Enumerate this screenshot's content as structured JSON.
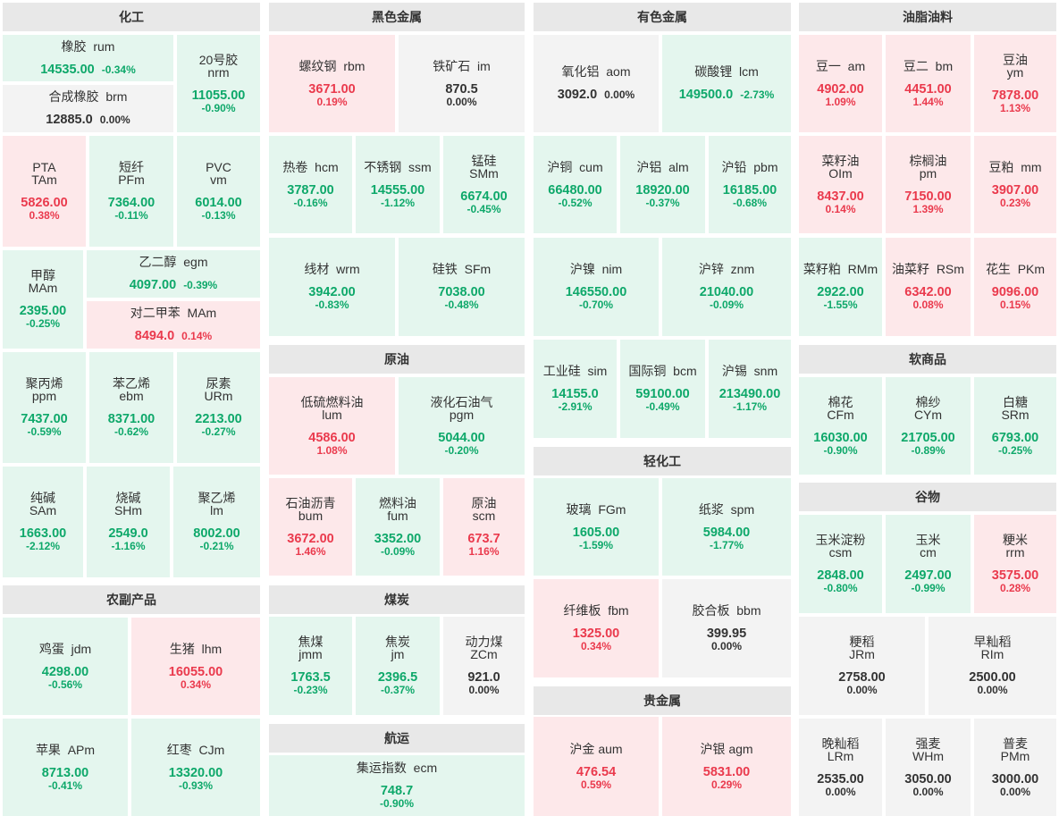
{
  "headers": [
    "化工",
    "黑色金属",
    "有色金属",
    "油脂油料",
    "原油",
    "轻化工",
    "软商品",
    "谷物",
    "农副产品",
    "煤炭",
    "航运",
    "贵金属"
  ],
  "tiles": [
    {
      "name": "橡胶  rum",
      "price": "14535.00",
      "change": "-0.34%"
    },
    {
      "name": "20号胶\nnrm",
      "price": "11055.00",
      "change": "-0.90%"
    },
    {
      "name": "合成橡胶  brm",
      "price": "12885.0",
      "change": "0.00%"
    },
    {
      "name": "PTA\nTAm",
      "price": "5826.00",
      "change": "0.38%"
    },
    {
      "name": "短纤\nPFm",
      "price": "7364.00",
      "change": "-0.11%"
    },
    {
      "name": "PVC\nvm",
      "price": "6014.00",
      "change": "-0.13%"
    },
    {
      "name": "甲醇\nMAm",
      "price": "2395.00",
      "change": "-0.25%"
    },
    {
      "name": "乙二醇  egm",
      "price": "4097.00",
      "change": "-0.39%"
    },
    {
      "name": "对二甲苯  MAm",
      "price": "8494.0",
      "change": "0.14%"
    },
    {
      "name": "聚丙烯\nppm",
      "price": "7437.00",
      "change": "-0.59%"
    },
    {
      "name": "苯乙烯\nebm",
      "price": "8371.00",
      "change": "-0.62%"
    },
    {
      "name": "尿素\nURm",
      "price": "2213.00",
      "change": "-0.27%"
    },
    {
      "name": "纯碱\nSAm",
      "price": "1663.00",
      "change": "-2.12%"
    },
    {
      "name": "烧碱\nSHm",
      "price": "2549.0",
      "change": "-1.16%"
    },
    {
      "name": "聚乙烯\nlm",
      "price": "8002.00",
      "change": "-0.21%"
    },
    {
      "name": "鸡蛋  jdm",
      "price": "4298.00",
      "change": "-0.56%"
    },
    {
      "name": "生猪  lhm",
      "price": "16055.00",
      "change": "0.34%"
    },
    {
      "name": "苹果  APm",
      "price": "8713.00",
      "change": "-0.41%"
    },
    {
      "name": "红枣  CJm",
      "price": "13320.00",
      "change": "-0.93%"
    },
    {
      "name": "螺纹钢  rbm",
      "price": "3671.00",
      "change": "0.19%"
    },
    {
      "name": "铁矿石  im",
      "price": "870.5",
      "change": "0.00%"
    },
    {
      "name": "热卷  hcm",
      "price": "3787.00",
      "change": "-0.16%"
    },
    {
      "name": "不锈钢  ssm",
      "price": "14555.00",
      "change": "-1.12%"
    },
    {
      "name": "锰硅\nSMm",
      "price": "6674.00",
      "change": "-0.45%"
    },
    {
      "name": "线材  wrm",
      "price": "3942.00",
      "change": "-0.83%"
    },
    {
      "name": "硅铁  SFm",
      "price": "7038.00",
      "change": "-0.48%"
    },
    {
      "name": "低硫燃料油\nlum",
      "price": "4586.00",
      "change": "1.08%"
    },
    {
      "name": "液化石油气\npgm",
      "price": "5044.00",
      "change": "-0.20%"
    },
    {
      "name": "石油沥青\nbum",
      "price": "3672.00",
      "change": "1.46%"
    },
    {
      "name": "燃料油\nfum",
      "price": "3352.00",
      "change": "-0.09%"
    },
    {
      "name": "原油\nscm",
      "price": "673.7",
      "change": "1.16%"
    },
    {
      "name": "焦煤\njmm",
      "price": "1763.5",
      "change": "-0.23%"
    },
    {
      "name": "焦炭\njm",
      "price": "2396.5",
      "change": "-0.37%"
    },
    {
      "name": "动力煤\nZCm",
      "price": "921.0",
      "change": "0.00%"
    },
    {
      "name": "集运指数  ecm",
      "price": "748.7",
      "change": "-0.90%"
    },
    {
      "name": "氧化铝  aom",
      "price": "3092.0",
      "change": "0.00%"
    },
    {
      "name": "碳酸锂  lcm",
      "price": "149500.0",
      "change": "-2.73%"
    },
    {
      "name": "沪铜  cum",
      "price": "66480.00",
      "change": "-0.52%"
    },
    {
      "name": "沪铝  alm",
      "price": "18920.00",
      "change": "-0.37%"
    },
    {
      "name": "沪铅  pbm",
      "price": "16185.00",
      "change": "-0.68%"
    },
    {
      "name": "沪镍  nim",
      "price": "146550.00",
      "change": "-0.70%"
    },
    {
      "name": "沪锌  znm",
      "price": "21040.00",
      "change": "-0.09%"
    },
    {
      "name": "工业硅  sim",
      "price": "14155.0",
      "change": "-2.91%"
    },
    {
      "name": "国际铜  bcm",
      "price": "59100.00",
      "change": "-0.49%"
    },
    {
      "name": "沪锡  snm",
      "price": "213490.00",
      "change": "-1.17%"
    },
    {
      "name": "玻璃  FGm",
      "price": "1605.00",
      "change": "-1.59%"
    },
    {
      "name": "纸浆  spm",
      "price": "5984.00",
      "change": "-1.77%"
    },
    {
      "name": "纤维板  fbm",
      "price": "1325.00",
      "change": "0.34%"
    },
    {
      "name": "胶合板  bbm",
      "price": "399.95",
      "change": "0.00%"
    },
    {
      "name": "沪金 aum",
      "price": "476.54",
      "change": "0.59%"
    },
    {
      "name": "沪银 agm",
      "price": "5831.00",
      "change": "0.29%"
    },
    {
      "name": "豆一  am",
      "price": "4902.00",
      "change": "1.09%"
    },
    {
      "name": "豆二  bm",
      "price": "4451.00",
      "change": "1.44%"
    },
    {
      "name": "豆油\nym",
      "price": "7878.00",
      "change": "1.13%"
    },
    {
      "name": "菜籽油\nOIm",
      "price": "8437.00",
      "change": "0.14%"
    },
    {
      "name": "棕榈油\npm",
      "price": "7150.00",
      "change": "1.39%"
    },
    {
      "name": "豆粕  mm",
      "price": "3907.00",
      "change": "0.23%"
    },
    {
      "name": "菜籽粕  RMm",
      "price": "2922.00",
      "change": "-1.55%"
    },
    {
      "name": "油菜籽  RSm",
      "price": "6342.00",
      "change": "0.08%"
    },
    {
      "name": "花生  PKm",
      "price": "9096.00",
      "change": "0.15%"
    },
    {
      "name": "棉花\nCFm",
      "price": "16030.00",
      "change": "-0.90%"
    },
    {
      "name": "棉纱\nCYm",
      "price": "21705.00",
      "change": "-0.89%"
    },
    {
      "name": "白糖\nSRm",
      "price": "6793.00",
      "change": "-0.25%"
    },
    {
      "name": "玉米淀粉\ncsm",
      "price": "2848.00",
      "change": "-0.80%"
    },
    {
      "name": "玉米\ncm",
      "price": "2497.00",
      "change": "-0.99%"
    },
    {
      "name": "粳米\nrrm",
      "price": "3575.00",
      "change": "0.28%"
    },
    {
      "name": "粳稻\nJRm",
      "price": "2758.00",
      "change": "0.00%"
    },
    {
      "name": "早籼稻\nRIm",
      "price": "2500.00",
      "change": "0.00%"
    },
    {
      "name": "晚籼稻\nLRm",
      "price": "2535.00",
      "change": "0.00%"
    },
    {
      "name": "强麦\nWHm",
      "price": "3050.00",
      "change": "0.00%"
    },
    {
      "name": "普麦\nPMm",
      "price": "3000.00",
      "change": "0.00%"
    }
  ],
  "colors": {
    "up_bg": "#fde8ea",
    "down_bg": "#e4f6ee",
    "flat_bg": "#f3f3f3",
    "up": "#ea3a4d",
    "down": "#0ea86a",
    "header_bg": "#e8e8e8"
  }
}
